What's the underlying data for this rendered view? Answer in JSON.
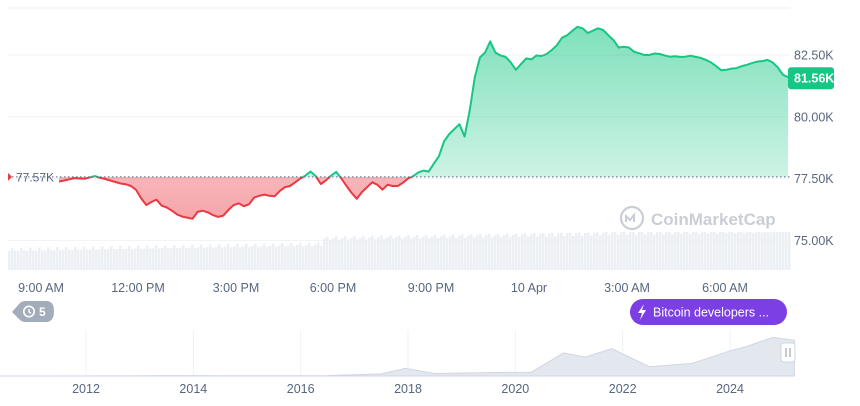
{
  "chart_data": [
    {
      "type": "area",
      "x_tick_labels": [
        "9:00 AM",
        "12:00 PM",
        "3:00 PM",
        "6:00 PM",
        "9:00 PM",
        "10 Apr",
        "3:00 AM",
        "6:00 AM"
      ],
      "y_tick_labels": [
        "82.50K",
        "80.00K",
        "77.50K",
        "75.00K"
      ],
      "ylim": [
        73800,
        84400
      ],
      "baseline": {
        "value": 77570,
        "label": "77.57K"
      },
      "current": {
        "value": 81560,
        "label": "81.56K"
      },
      "series": [
        {
          "values": [
            77380,
            77420,
            77470,
            77520,
            77500,
            77490,
            77550,
            77600,
            77530,
            77480,
            77420,
            77360,
            77300,
            77270,
            77200,
            77050,
            76700,
            76430,
            76550,
            76650,
            76400,
            76330,
            76200,
            76050,
            75960,
            75920,
            75870,
            76150,
            76200,
            76130,
            76020,
            75950,
            76000,
            76230,
            76420,
            76500,
            76380,
            76460,
            76730,
            76800,
            76850,
            76800,
            76780,
            77000,
            77150,
            77200,
            77350,
            77500,
            77620,
            77780,
            77600,
            77280,
            77430,
            77620,
            77770,
            77500,
            77200,
            76920,
            76680,
            76950,
            77150,
            77350,
            77250,
            77050,
            77250,
            77200,
            77200,
            77330,
            77500,
            77600,
            77750,
            77820,
            77780,
            78100,
            78400,
            79000,
            79300,
            79500,
            79700,
            79200,
            80250,
            81600,
            82400,
            82600,
            83050,
            82600,
            82480,
            82420,
            82200,
            81900,
            82130,
            82360,
            82320,
            82480,
            82460,
            82540,
            82700,
            82900,
            83200,
            83300,
            83480,
            83640,
            83580,
            83390,
            83480,
            83580,
            83510,
            83300,
            83100,
            82800,
            82830,
            82800,
            82630,
            82570,
            82500,
            82500,
            82560,
            82540,
            82480,
            82430,
            82450,
            82420,
            82430,
            82470,
            82420,
            82380,
            82300,
            82200,
            82050,
            81880,
            81900,
            81950,
            81970,
            82050,
            82100,
            82170,
            82230,
            82250,
            82300,
            82200,
            82000,
            81700,
            81600
          ],
          "color_down": "#ea3943",
          "color_up": "#16c784"
        }
      ],
      "volume_present": true
    },
    {
      "type": "area",
      "x_tick_labels": [
        "2012",
        "2014",
        "2016",
        "2018",
        "2020",
        "2022",
        "2024"
      ],
      "x": [
        2010.2,
        2011.5,
        2012.5,
        2013.5,
        2014.5,
        2015.5,
        2016.5,
        2017.5,
        2017.95,
        2018.5,
        2019.5,
        2020.3,
        2020.9,
        2021.3,
        2021.8,
        2022.5,
        2023.3,
        2024.0,
        2024.3,
        2024.8,
        2025.2
      ],
      "values": [
        0,
        0,
        0.002,
        0.01,
        0.004,
        0.004,
        0.01,
        0.05,
        0.18,
        0.06,
        0.08,
        0.09,
        0.55,
        0.45,
        0.65,
        0.22,
        0.3,
        0.6,
        0.7,
        0.92,
        0.85
      ],
      "color": "#cfd6e4"
    }
  ],
  "watermark": "CoinMarketCap",
  "history_badge": {
    "count": "5",
    "icon": "history-icon"
  },
  "news_badge": {
    "label": "Bitcoin developers ...",
    "icon": "lightning-icon",
    "color": "#7b3fe4"
  },
  "colors": {
    "up": "#16c784",
    "down": "#ea3943",
    "axis_text": "#58667e",
    "grid": "#eff2f5"
  }
}
